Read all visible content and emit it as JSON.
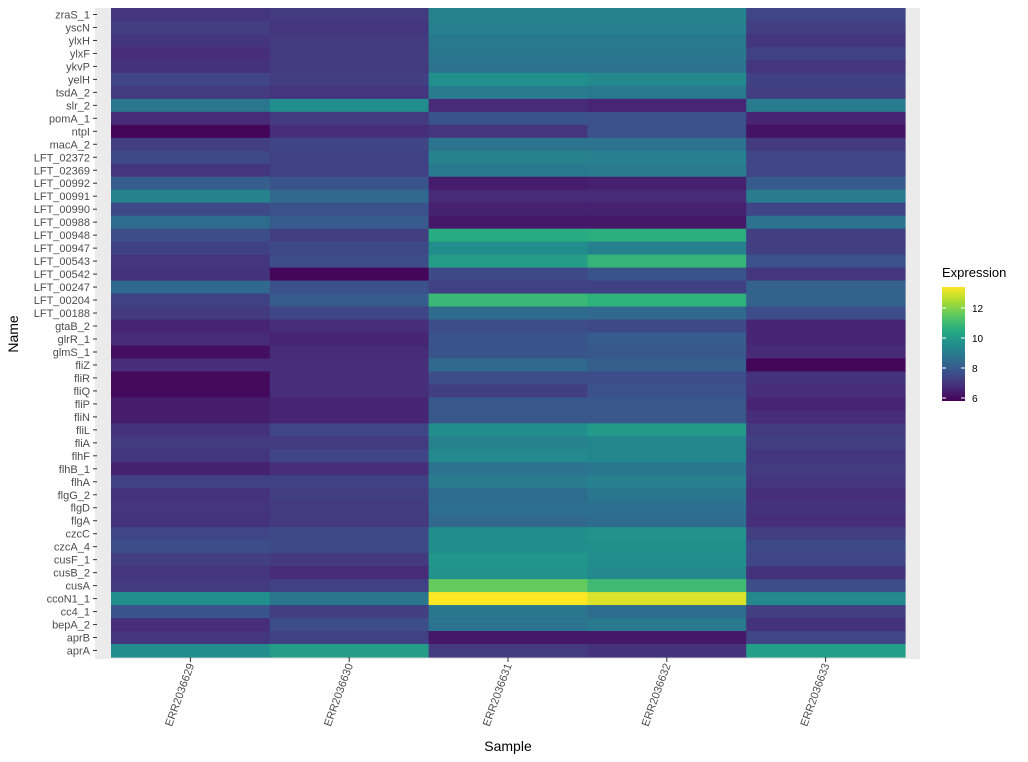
{
  "chart_data": {
    "type": "heatmap",
    "title": "",
    "xlabel": "Sample",
    "ylabel": "Name",
    "legend": {
      "title": "Expression",
      "position": "right",
      "ticks": [
        6,
        8,
        10,
        12
      ],
      "range": [
        5.8,
        13.4
      ],
      "colormap": "viridis"
    },
    "x_categories": [
      "ERR2036629",
      "ERR2036630",
      "ERR2036631",
      "ERR2036632",
      "ERR2036633"
    ],
    "rows": [
      {
        "name": "zraS_1",
        "values": [
          7.0,
          7.1,
          9.2,
          9.2,
          7.4
        ]
      },
      {
        "name": "yscN",
        "values": [
          7.2,
          7.0,
          9.1,
          9.1,
          7.2
        ]
      },
      {
        "name": "ylxH",
        "values": [
          7.0,
          7.1,
          8.9,
          8.9,
          7.0
        ]
      },
      {
        "name": "ylxF",
        "values": [
          6.8,
          7.1,
          8.8,
          8.8,
          7.3
        ]
      },
      {
        "name": "ykvP",
        "values": [
          6.9,
          7.1,
          8.7,
          8.7,
          7.0
        ]
      },
      {
        "name": "yelH",
        "values": [
          7.4,
          7.2,
          9.6,
          9.4,
          7.3
        ]
      },
      {
        "name": "tsdA_2",
        "values": [
          7.1,
          7.0,
          9.0,
          8.9,
          7.2
        ]
      },
      {
        "name": "slr_2",
        "values": [
          8.8,
          9.5,
          6.7,
          6.6,
          9.0
        ]
      },
      {
        "name": "pomA_1",
        "values": [
          6.7,
          7.1,
          7.8,
          7.7,
          6.6
        ]
      },
      {
        "name": "ntpI",
        "values": [
          5.9,
          6.8,
          7.0,
          7.7,
          6.2
        ]
      },
      {
        "name": "macA_2",
        "values": [
          7.2,
          7.4,
          8.7,
          8.7,
          7.1
        ]
      },
      {
        "name": "LFT_02372",
        "values": [
          7.5,
          7.3,
          9.2,
          9.1,
          7.4
        ]
      },
      {
        "name": "LFT_02369",
        "values": [
          7.0,
          7.3,
          8.9,
          9.0,
          7.4
        ]
      },
      {
        "name": "LFT_00992",
        "values": [
          8.1,
          7.8,
          6.4,
          6.5,
          8.0
        ]
      },
      {
        "name": "LFT_00991",
        "values": [
          9.2,
          8.4,
          6.7,
          6.7,
          9.0
        ]
      },
      {
        "name": "LFT_00990",
        "values": [
          7.5,
          7.7,
          6.5,
          6.5,
          7.4
        ]
      },
      {
        "name": "LFT_00988",
        "values": [
          8.5,
          8.0,
          6.3,
          6.3,
          8.7
        ]
      },
      {
        "name": "LFT_00948",
        "values": [
          7.6,
          7.2,
          10.5,
          10.6,
          7.2
        ]
      },
      {
        "name": "LFT_00947",
        "values": [
          7.3,
          7.5,
          9.5,
          9.1,
          7.2
        ]
      },
      {
        "name": "LFT_00543",
        "values": [
          7.0,
          7.6,
          10.0,
          10.8,
          7.7
        ]
      },
      {
        "name": "LFT_00542",
        "values": [
          6.9,
          5.9,
          7.5,
          7.8,
          7.0
        ]
      },
      {
        "name": "LFT_00247",
        "values": [
          8.4,
          7.7,
          7.3,
          7.3,
          8.2
        ]
      },
      {
        "name": "LFT_00204",
        "values": [
          7.3,
          8.0,
          10.9,
          10.7,
          8.2
        ]
      },
      {
        "name": "LFT_00188",
        "values": [
          7.1,
          7.4,
          8.5,
          8.4,
          7.6
        ]
      },
      {
        "name": "gtaB_2",
        "values": [
          6.6,
          6.8,
          7.6,
          7.5,
          6.6
        ]
      },
      {
        "name": "glrR_1",
        "values": [
          6.7,
          6.6,
          7.8,
          8.0,
          6.6
        ]
      },
      {
        "name": "glmS_1",
        "values": [
          6.1,
          6.7,
          7.8,
          7.9,
          6.7
        ]
      },
      {
        "name": "fliZ",
        "values": [
          6.8,
          6.8,
          8.4,
          8.1,
          5.9
        ]
      },
      {
        "name": "fliR",
        "values": [
          6.0,
          6.8,
          7.6,
          7.6,
          6.9
        ]
      },
      {
        "name": "fliQ",
        "values": [
          6.0,
          6.8,
          7.2,
          7.7,
          6.8
        ]
      },
      {
        "name": "fliP",
        "values": [
          6.4,
          6.6,
          7.9,
          7.9,
          6.6
        ]
      },
      {
        "name": "fliN",
        "values": [
          6.4,
          6.6,
          7.9,
          7.9,
          6.8
        ]
      },
      {
        "name": "fliL",
        "values": [
          6.9,
          7.4,
          9.5,
          9.9,
          7.1
        ]
      },
      {
        "name": "fliA",
        "values": [
          7.1,
          7.1,
          9.2,
          9.3,
          7.2
        ]
      },
      {
        "name": "flhF",
        "values": [
          7.0,
          7.4,
          9.4,
          9.3,
          7.0
        ]
      },
      {
        "name": "flhB_1",
        "values": [
          6.5,
          6.8,
          8.7,
          8.8,
          7.1
        ]
      },
      {
        "name": "flhA",
        "values": [
          7.3,
          7.3,
          9.0,
          9.1,
          7.0
        ]
      },
      {
        "name": "flgG_2",
        "values": [
          6.9,
          7.2,
          8.5,
          8.8,
          6.8
        ]
      },
      {
        "name": "flgD",
        "values": [
          7.0,
          7.1,
          8.6,
          8.6,
          6.9
        ]
      },
      {
        "name": "flgA",
        "values": [
          6.9,
          7.1,
          8.4,
          8.5,
          6.8
        ]
      },
      {
        "name": "czcC",
        "values": [
          7.4,
          7.5,
          9.5,
          9.7,
          7.2
        ]
      },
      {
        "name": "czcA_4",
        "values": [
          7.6,
          7.5,
          9.5,
          9.6,
          7.5
        ]
      },
      {
        "name": "cusF_1",
        "values": [
          7.2,
          7.1,
          9.8,
          9.5,
          7.4
        ]
      },
      {
        "name": "cusB_2",
        "values": [
          7.0,
          6.7,
          9.7,
          9.4,
          6.9
        ]
      },
      {
        "name": "cusA",
        "values": [
          7.1,
          7.3,
          11.6,
          11.0,
          7.6
        ]
      },
      {
        "name": "ccoN1_1",
        "values": [
          9.6,
          8.8,
          13.4,
          13.0,
          9.4
        ]
      },
      {
        "name": "cc4_1",
        "values": [
          7.8,
          7.2,
          8.8,
          8.5,
          7.2
        ]
      },
      {
        "name": "bepA_2",
        "values": [
          6.8,
          7.6,
          8.7,
          8.9,
          6.9
        ]
      },
      {
        "name": "aprB",
        "values": [
          7.0,
          7.3,
          6.3,
          6.3,
          7.4
        ]
      },
      {
        "name": "aprA",
        "values": [
          9.5,
          10.0,
          7.1,
          6.9,
          10.1
        ]
      }
    ]
  }
}
